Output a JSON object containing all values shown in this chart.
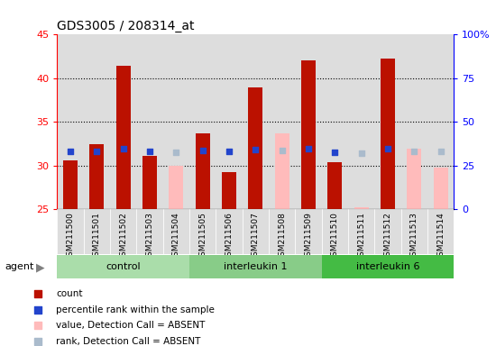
{
  "title": "GDS3005 / 208314_at",
  "samples": [
    "GSM211500",
    "GSM211501",
    "GSM211502",
    "GSM211503",
    "GSM211504",
    "GSM211505",
    "GSM211506",
    "GSM211507",
    "GSM211508",
    "GSM211509",
    "GSM211510",
    "GSM211511",
    "GSM211512",
    "GSM211513",
    "GSM211514"
  ],
  "groups": [
    {
      "label": "control",
      "color": "#aaddaa",
      "start": 0,
      "end": 5
    },
    {
      "label": "interleukin 1",
      "color": "#88cc88",
      "start": 5,
      "end": 10
    },
    {
      "label": "interleukin 6",
      "color": "#44bb44",
      "start": 10,
      "end": 15
    }
  ],
  "count_values": [
    30.6,
    32.5,
    41.4,
    31.1,
    null,
    33.7,
    29.3,
    39.0,
    null,
    42.0,
    30.4,
    null,
    42.3,
    null,
    null
  ],
  "count_absent": [
    null,
    null,
    null,
    null,
    30.0,
    null,
    null,
    null,
    33.7,
    null,
    null,
    25.2,
    null,
    31.9,
    29.8
  ],
  "rank_values": [
    33.0,
    33.2,
    34.7,
    33.1,
    null,
    33.7,
    33.0,
    34.4,
    null,
    34.7,
    32.9,
    null,
    34.9,
    null,
    null
  ],
  "rank_absent": [
    null,
    null,
    null,
    null,
    32.7,
    null,
    null,
    null,
    33.7,
    null,
    null,
    32.3,
    null,
    33.2,
    33.1
  ],
  "ylim_left": [
    25,
    45
  ],
  "ylim_right": [
    0,
    100
  ],
  "left_ticks": [
    25,
    30,
    35,
    40,
    45
  ],
  "right_ticks": [
    0,
    25,
    50,
    75,
    100
  ],
  "right_tick_labels": [
    "0",
    "25",
    "50",
    "75",
    "100%"
  ],
  "bar_width": 0.55,
  "bar_color_red": "#bb1100",
  "bar_color_pink": "#ffbbbb",
  "dot_color_blue": "#2244cc",
  "dot_color_lightblue": "#aabbcc",
  "col_bg_color": "#dddddd",
  "agent_label": "agent",
  "legend_items": [
    {
      "color": "#bb1100",
      "label": "count"
    },
    {
      "color": "#2244cc",
      "label": "percentile rank within the sample"
    },
    {
      "color": "#ffbbbb",
      "label": "value, Detection Call = ABSENT"
    },
    {
      "color": "#aabbcc",
      "label": "rank, Detection Call = ABSENT"
    }
  ]
}
